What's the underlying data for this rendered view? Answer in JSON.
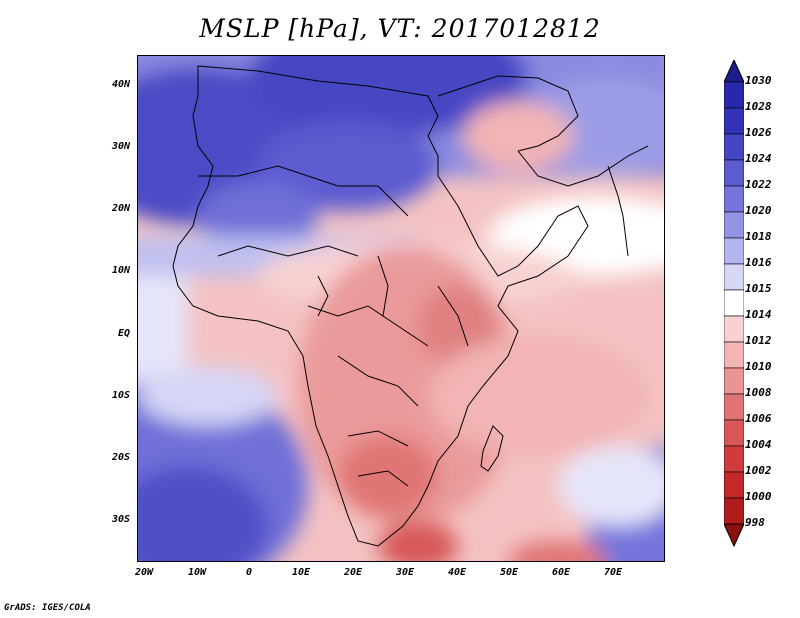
{
  "title": "MSLP [hPa], VT: 2017012812",
  "credit": "GrADS: IGES/COLA",
  "lat_labels": [
    "40N",
    "30N",
    "20N",
    "10N",
    "EQ",
    "10S",
    "20S",
    "30S"
  ],
  "lon_labels": [
    "20W",
    "10W",
    "0",
    "10E",
    "20E",
    "30E",
    "40E",
    "50E",
    "60E",
    "70E"
  ],
  "colorbar": {
    "levels": [
      "1030",
      "1028",
      "1026",
      "1024",
      "1022",
      "1020",
      "1018",
      "1016",
      "1015",
      "1014",
      "1012",
      "1010",
      "1008",
      "1006",
      "1004",
      "1002",
      "1000",
      "998"
    ],
    "colors": [
      "#1c1c8a",
      "#2828a8",
      "#3232b8",
      "#4646c4",
      "#5c5cd0",
      "#7474dc",
      "#9494e4",
      "#b4b4ee",
      "#d6d6f6",
      "#ffffff",
      "#f8d2d2",
      "#f2b4b4",
      "#ea9494",
      "#e07474",
      "#d85858",
      "#d03c3c",
      "#c42828",
      "#b01c1c",
      "#8c1010"
    ]
  },
  "map": {
    "background": "#ffffff",
    "land_high": "#5c5cd0",
    "sea_high": "#7474dc",
    "low": "#e07474"
  }
}
